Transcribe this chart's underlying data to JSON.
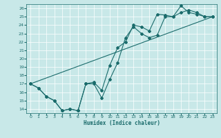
{
  "xlabel": "Humidex (Indice chaleur)",
  "bg_color": "#c8e8e8",
  "line_color": "#1a6b6b",
  "xlim": [
    -0.5,
    23.5
  ],
  "ylim": [
    13.5,
    26.5
  ],
  "xticks": [
    0,
    1,
    2,
    3,
    4,
    5,
    6,
    7,
    8,
    9,
    10,
    11,
    12,
    13,
    14,
    15,
    16,
    17,
    18,
    19,
    20,
    21,
    22,
    23
  ],
  "yticks": [
    14,
    15,
    16,
    17,
    18,
    19,
    20,
    21,
    22,
    23,
    24,
    25,
    26
  ],
  "series1": {
    "x": [
      0,
      1,
      2,
      3,
      4,
      5,
      6,
      7,
      8,
      9,
      10,
      11,
      12,
      13,
      14,
      15,
      16,
      17,
      18,
      19,
      20,
      21,
      22,
      23
    ],
    "y": [
      17,
      16.5,
      15.5,
      15,
      13.8,
      14,
      13.8,
      17,
      17,
      15.3,
      17.5,
      19.5,
      22.5,
      23.8,
      23,
      22.5,
      22.8,
      25,
      25,
      26.3,
      25.5,
      25.3,
      25,
      25
    ]
  },
  "series2": {
    "x": [
      0,
      1,
      2,
      3,
      4,
      5,
      6,
      7,
      8,
      9,
      10,
      11,
      12,
      13,
      14,
      15,
      16,
      17,
      18,
      19,
      20,
      21,
      22,
      23
    ],
    "y": [
      17,
      16.5,
      15.5,
      15,
      13.8,
      14,
      13.8,
      17,
      17.2,
      16.2,
      19.2,
      21.3,
      22,
      24,
      23.8,
      23.3,
      25.3,
      25.2,
      25,
      25.5,
      25.8,
      25.5,
      25,
      25
    ]
  },
  "series3": {
    "x": [
      0,
      23
    ],
    "y": [
      17,
      25
    ]
  }
}
